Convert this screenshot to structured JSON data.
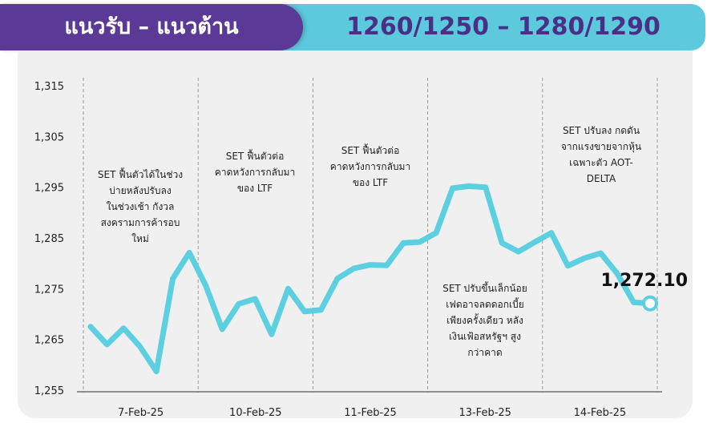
{
  "header": {
    "title": "แนวรับ – แนวต้าน",
    "levels": "1260/1250 – 1280/1290"
  },
  "colors": {
    "header_purple": "#5a3a96",
    "header_cyan": "#5cc9dc",
    "levels_text": "#4a2f86",
    "line": "#5ccfe0",
    "panel_bg": "#f0f0f0"
  },
  "chart_data": {
    "type": "line",
    "ylim": [
      1255,
      1315
    ],
    "yticks": [
      "1,255",
      "1,265",
      "1,275",
      "1,285",
      "1,295",
      "1,305",
      "1,315"
    ],
    "ytick_values": [
      1255,
      1265,
      1275,
      1285,
      1295,
      1305,
      1315
    ],
    "days": [
      "7-Feb-25",
      "10-Feb-25",
      "11-Feb-25",
      "13-Feb-25",
      "14-Feb-25"
    ],
    "values": [
      1267.5,
      1264,
      1267.2,
      1263.6,
      1258.7,
      1277,
      1282.1,
      1275.6,
      1267,
      1272,
      1273,
      1266,
      1275,
      1270.5,
      1270.8,
      1277,
      1279,
      1279.7,
      1279.6,
      1284,
      1284.2,
      1286,
      1294.8,
      1295.2,
      1295,
      1284,
      1282.3,
      1284.2,
      1286,
      1279.5,
      1281,
      1282,
      1278,
      1272.3,
      1272.1
    ],
    "last_value_label": "1,272.10",
    "annotations": [
      "SET ฟื้นตัวได้ในช่วง\nบ่ายหลังปรับลง\nในช่วงเช้า กังวล\nสงครามการค้ารอบ\nใหม่",
      "SET ฟื้นตัวต่อ\nคาดหวังการกลับมา\nของ LTF",
      "SET ฟื้นตัวต่อ\nคาดหวังการกลับมา\nของ LTF",
      "SET ปรับขึ้นเล็กน้อย\nเฟดอาจลดดอกเบี้ย\nเพียงครั้งเดียว หลัง\nเงินเฟ้อสหรัฐฯ สูง\nกว่าคาด",
      "SET ปรับลง กดดัน\nจากแรงขายจากหุ้น\nเฉพาะตัว AOT-\nDELTA"
    ]
  }
}
